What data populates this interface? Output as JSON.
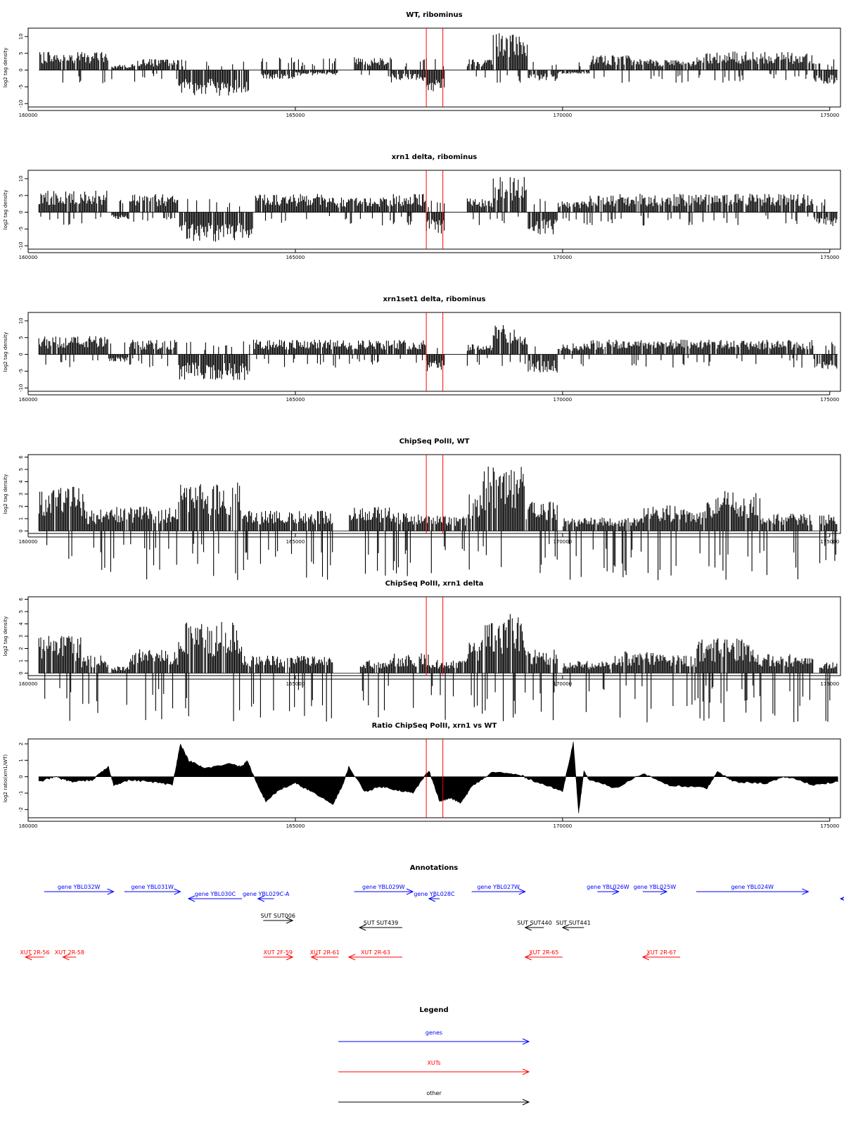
{
  "colors": {
    "genes": "#0000ff",
    "xuts": "#ff0000",
    "other": "#000000",
    "marker": "#ff0000",
    "bars": "#000000"
  },
  "x_axis": {
    "min": 160000,
    "max": 175200,
    "ticks": [
      160000,
      165000,
      170000,
      175000
    ],
    "tick_labels": [
      "160000",
      "165000",
      "170000",
      "175000"
    ]
  },
  "markers": [
    167450,
    167760
  ],
  "chart_data": [
    {
      "type": "bar",
      "title": "WT, ribominus",
      "xlabel": "",
      "ylabel": "log2 tag density",
      "ylim": [
        -11,
        12.5
      ],
      "yticks": [
        -10,
        -5,
        0,
        5,
        10
      ],
      "ytick_labels": [
        "-10",
        "-5",
        "0",
        "5",
        "10"
      ],
      "bins": 800,
      "grid": false,
      "envelope": [
        {
          "from": 160200,
          "to": 161500,
          "value": 5
        },
        {
          "from": 161550,
          "to": 161950,
          "value": 1.5
        },
        {
          "from": 161950,
          "to": 162800,
          "value": 3
        },
        {
          "from": 162800,
          "to": 164150,
          "value": -7
        },
        {
          "from": 164350,
          "to": 165000,
          "value": -2.5
        },
        {
          "from": 165000,
          "to": 165800,
          "value": -1.5
        },
        {
          "from": 166100,
          "to": 166800,
          "value": 3.5
        },
        {
          "from": 166800,
          "to": 167450,
          "value": -3
        },
        {
          "from": 167450,
          "to": 167800,
          "value": -6
        },
        {
          "from": 168200,
          "to": 168700,
          "value": 3
        },
        {
          "from": 168700,
          "to": 169350,
          "value": 10
        },
        {
          "from": 169350,
          "to": 169900,
          "value": -3
        },
        {
          "from": 169900,
          "to": 170500,
          "value": -1
        },
        {
          "from": 170500,
          "to": 171300,
          "value": 4
        },
        {
          "from": 171300,
          "to": 172500,
          "value": 3
        },
        {
          "from": 172500,
          "to": 174700,
          "value": 5
        },
        {
          "from": 174700,
          "to": 175150,
          "value": -4
        }
      ]
    },
    {
      "type": "bar",
      "title": "xrn1 delta, ribominus",
      "xlabel": "",
      "ylabel": "log2 tag density",
      "ylim": [
        -11,
        12.5
      ],
      "yticks": [
        -10,
        -5,
        0,
        5,
        10
      ],
      "ytick_labels": [
        "-10",
        "-5",
        "0",
        "5",
        "10"
      ],
      "bins": 800,
      "grid": false,
      "envelope": [
        {
          "from": 160200,
          "to": 161500,
          "value": 6
        },
        {
          "from": 161550,
          "to": 161900,
          "value": -2
        },
        {
          "from": 161900,
          "to": 162800,
          "value": 5
        },
        {
          "from": 162800,
          "to": 164200,
          "value": -8
        },
        {
          "from": 164250,
          "to": 165500,
          "value": 5
        },
        {
          "from": 165500,
          "to": 166800,
          "value": 4
        },
        {
          "from": 166800,
          "to": 167450,
          "value": 5
        },
        {
          "from": 167450,
          "to": 167800,
          "value": -6
        },
        {
          "from": 168200,
          "to": 168700,
          "value": 4
        },
        {
          "from": 168700,
          "to": 169350,
          "value": 10
        },
        {
          "from": 169350,
          "to": 169900,
          "value": -6
        },
        {
          "from": 169900,
          "to": 170500,
          "value": 3
        },
        {
          "from": 170500,
          "to": 172000,
          "value": 5
        },
        {
          "from": 172000,
          "to": 174700,
          "value": 5
        },
        {
          "from": 174700,
          "to": 175150,
          "value": -4
        }
      ]
    },
    {
      "type": "bar",
      "title": "xrn1set1 delta, ribominus",
      "xlabel": "",
      "ylabel": "log2 tag density",
      "ylim": [
        -11,
        12.5
      ],
      "yticks": [
        -10,
        -5,
        0,
        5,
        10
      ],
      "ytick_labels": [
        "-10",
        "-5",
        "0",
        "5",
        "10"
      ],
      "bins": 800,
      "grid": false,
      "envelope": [
        {
          "from": 160200,
          "to": 161500,
          "value": 5
        },
        {
          "from": 161500,
          "to": 161900,
          "value": -2
        },
        {
          "from": 161900,
          "to": 162800,
          "value": 4
        },
        {
          "from": 162800,
          "to": 164150,
          "value": -7
        },
        {
          "from": 164200,
          "to": 165500,
          "value": 4
        },
        {
          "from": 165500,
          "to": 166800,
          "value": 4
        },
        {
          "from": 166800,
          "to": 167450,
          "value": 4
        },
        {
          "from": 167450,
          "to": 167800,
          "value": -5
        },
        {
          "from": 168200,
          "to": 168700,
          "value": 3
        },
        {
          "from": 168700,
          "to": 169350,
          "value": 8
        },
        {
          "from": 169350,
          "to": 169900,
          "value": -5
        },
        {
          "from": 169900,
          "to": 170500,
          "value": 3
        },
        {
          "from": 170500,
          "to": 174700,
          "value": 4
        },
        {
          "from": 174700,
          "to": 175150,
          "value": -4
        }
      ]
    },
    {
      "type": "bar",
      "title": "ChipSeq PolII, WT",
      "xlabel": "",
      "ylabel": "log2 tag density",
      "ylim": [
        -0.2,
        6.2
      ],
      "yticks": [
        0,
        1,
        2,
        3,
        4,
        5,
        6
      ],
      "ytick_labels": [
        "0",
        "1",
        "2",
        "3",
        "4",
        "5",
        "6"
      ],
      "bins": 800,
      "grid": false,
      "envelope": [
        {
          "from": 160200,
          "to": 161050,
          "value": 3.3
        },
        {
          "from": 161050,
          "to": 161500,
          "value": 1.6
        },
        {
          "from": 161500,
          "to": 162800,
          "value": 1.8
        },
        {
          "from": 162800,
          "to": 164000,
          "value": 3.6
        },
        {
          "from": 164000,
          "to": 165700,
          "value": 1.5
        },
        {
          "from": 166000,
          "to": 166800,
          "value": 1.8
        },
        {
          "from": 166800,
          "to": 167700,
          "value": 1.4
        },
        {
          "from": 167700,
          "to": 168200,
          "value": 1.2
        },
        {
          "from": 168200,
          "to": 168500,
          "value": 2.8
        },
        {
          "from": 168500,
          "to": 169300,
          "value": 4.8
        },
        {
          "from": 169300,
          "to": 169900,
          "value": 2.2
        },
        {
          "from": 170000,
          "to": 171500,
          "value": 1.0
        },
        {
          "from": 171500,
          "to": 172300,
          "value": 1.9
        },
        {
          "from": 172300,
          "to": 172700,
          "value": 1.5
        },
        {
          "from": 172700,
          "to": 173700,
          "value": 3.0
        },
        {
          "from": 173700,
          "to": 174700,
          "value": 1.3
        },
        {
          "from": 174800,
          "to": 175150,
          "value": 1.3
        }
      ]
    },
    {
      "type": "bar",
      "title": "ChipSeq PolII, xrn1 delta",
      "xlabel": "",
      "ylabel": "log2 tag density",
      "ylim": [
        -0.2,
        6.2
      ],
      "yticks": [
        0,
        1,
        2,
        3,
        4,
        5,
        6
      ],
      "ytick_labels": [
        "0",
        "1",
        "2",
        "3",
        "4",
        "5",
        "6"
      ],
      "bins": 800,
      "grid": false,
      "envelope": [
        {
          "from": 160200,
          "to": 161000,
          "value": 2.8
        },
        {
          "from": 161000,
          "to": 161500,
          "value": 1.3
        },
        {
          "from": 161550,
          "to": 161900,
          "value": 0.5
        },
        {
          "from": 161900,
          "to": 162800,
          "value": 1.8
        },
        {
          "from": 162800,
          "to": 164000,
          "value": 3.8
        },
        {
          "from": 164000,
          "to": 165700,
          "value": 1.3
        },
        {
          "from": 166200,
          "to": 166800,
          "value": 1.0
        },
        {
          "from": 166800,
          "to": 167500,
          "value": 1.5
        },
        {
          "from": 167500,
          "to": 168200,
          "value": 1.0
        },
        {
          "from": 168200,
          "to": 168500,
          "value": 2.5
        },
        {
          "from": 168500,
          "to": 169300,
          "value": 4.5
        },
        {
          "from": 169300,
          "to": 169900,
          "value": 1.8
        },
        {
          "from": 170000,
          "to": 170900,
          "value": 0.9
        },
        {
          "from": 170900,
          "to": 171700,
          "value": 1.6
        },
        {
          "from": 171700,
          "to": 172500,
          "value": 1.4
        },
        {
          "from": 172500,
          "to": 173600,
          "value": 2.6
        },
        {
          "from": 173600,
          "to": 174700,
          "value": 1.4
        },
        {
          "from": 174800,
          "to": 175150,
          "value": 0.8
        }
      ]
    },
    {
      "type": "area",
      "title": "Ratio ChipSeq PolII, xrn1 vs WT",
      "xlabel": "",
      "ylabel": "log2 ratio(xrn1/WT)",
      "ylim": [
        -2.5,
        2.3
      ],
      "yticks": [
        -2,
        -1,
        0,
        1,
        2
      ],
      "ytick_labels": [
        "-2",
        "-1",
        "0",
        "1",
        "2"
      ],
      "grid": false,
      "x": [
        160200,
        160500,
        160800,
        161200,
        161500,
        161600,
        161900,
        162300,
        162700,
        162850,
        163000,
        163300,
        163800,
        164000,
        164100,
        164300,
        164450,
        164700,
        165000,
        165300,
        165700,
        165900,
        166000,
        166300,
        166600,
        166900,
        167200,
        167500,
        167700,
        167900,
        168100,
        168300,
        168700,
        169200,
        169500,
        170000,
        170200,
        170300,
        170400,
        170500,
        171000,
        171500,
        172000,
        172700,
        172900,
        173200,
        173800,
        174200,
        174700,
        175150
      ],
      "values": [
        -0.3,
        0.0,
        -0.3,
        -0.2,
        0.6,
        -0.5,
        -0.2,
        -0.3,
        -0.5,
        2.0,
        1.0,
        0.5,
        0.8,
        0.6,
        1.0,
        -0.6,
        -1.5,
        -0.8,
        -0.4,
        -0.9,
        -1.7,
        -0.4,
        0.6,
        -0.9,
        -0.6,
        -0.8,
        -1.0,
        0.4,
        -1.5,
        -1.3,
        -1.6,
        -0.6,
        0.3,
        0.1,
        -0.3,
        -0.9,
        2.1,
        -2.2,
        0.3,
        -0.2,
        -0.7,
        0.2,
        -0.5,
        -0.7,
        0.3,
        -0.3,
        -0.4,
        0.0,
        -0.5,
        -0.3
      ]
    }
  ],
  "annotations": {
    "title": "Annotations",
    "genes": [
      {
        "label": "gene YBL032W",
        "from": 160300,
        "to": 161600,
        "dir": "right",
        "row": 0
      },
      {
        "label": "gene YBL031W",
        "from": 161800,
        "to": 162850,
        "dir": "right",
        "row": 0
      },
      {
        "label": "gene YBL030C",
        "from": 163000,
        "to": 164000,
        "dir": "left",
        "row": 1
      },
      {
        "label": "gene YBL029C-A",
        "from": 164300,
        "to": 164600,
        "dir": "left",
        "row": 1
      },
      {
        "label": "gene YBL029W",
        "from": 166100,
        "to": 167200,
        "dir": "right",
        "row": 0
      },
      {
        "label": "gene YBL028C",
        "from": 167500,
        "to": 167700,
        "dir": "left",
        "row": 1
      },
      {
        "label": "gene YBL027W",
        "from": 168300,
        "to": 169300,
        "dir": "right",
        "row": 0
      },
      {
        "label": "gene YBL026W",
        "from": 170650,
        "to": 171050,
        "dir": "right",
        "row": 0
      },
      {
        "label": "gene YBL025W",
        "from": 171500,
        "to": 171950,
        "dir": "right",
        "row": 0
      },
      {
        "label": "gene YBL024W",
        "from": 172500,
        "to": 174600,
        "dir": "right",
        "row": 0
      },
      {
        "label": "",
        "from": 175200,
        "to": 176050,
        "dir": "left",
        "row": 1
      }
    ],
    "other": [
      {
        "label": "SUT SUT006",
        "from": 164400,
        "to": 164950,
        "dir": "right",
        "row": 0
      },
      {
        "label": "SUT SUT439",
        "from": 166200,
        "to": 167000,
        "dir": "left",
        "row": 1
      },
      {
        "label": "SUT SUT440",
        "from": 169300,
        "to": 169650,
        "dir": "left",
        "row": 1
      },
      {
        "label": "SUT SUT441",
        "from": 170000,
        "to": 170400,
        "dir": "left",
        "row": 1
      }
    ],
    "xuts": [
      {
        "label": "XUT 2R-56",
        "from": 159950,
        "to": 160300,
        "dir": "left"
      },
      {
        "label": "XUT 2R-58",
        "from": 160650,
        "to": 160900,
        "dir": "left"
      },
      {
        "label": "XUT 2F-59",
        "from": 164400,
        "to": 164950,
        "dir": "right"
      },
      {
        "label": "XUT 2R-61",
        "from": 165300,
        "to": 165800,
        "dir": "left"
      },
      {
        "label": "XUT 2R-63",
        "from": 166000,
        "to": 167000,
        "dir": "left"
      },
      {
        "label": "XUT 2R-65",
        "from": 169300,
        "to": 170000,
        "dir": "left"
      },
      {
        "label": "XUT 2R-67",
        "from": 171500,
        "to": 172200,
        "dir": "left"
      }
    ]
  },
  "legend": {
    "title": "Legend",
    "items": [
      {
        "label": "genes",
        "color": "#0000ff"
      },
      {
        "label": "XUTs",
        "color": "#ff0000"
      },
      {
        "label": "other",
        "color": "#000000"
      }
    ]
  }
}
